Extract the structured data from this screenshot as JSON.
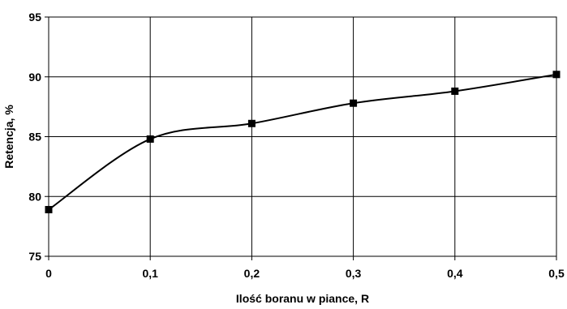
{
  "chart_data": {
    "type": "line",
    "title": "",
    "xlabel": "Ilość boranu w piance, R",
    "ylabel": "Retencja, %",
    "x": [
      0,
      0.1,
      0.2,
      0.3,
      0.4,
      0.5
    ],
    "x_tick_labels": [
      "0",
      "0,1",
      "0,2",
      "0,3",
      "0,4",
      "0,5"
    ],
    "xlim": [
      0,
      0.5
    ],
    "y_ticks": [
      75,
      80,
      85,
      90,
      95
    ],
    "y_tick_labels": [
      "75",
      "80",
      "85",
      "90",
      "95"
    ],
    "ylim": [
      75,
      95
    ],
    "grid": true,
    "smooth": true,
    "marker": "square",
    "series": [
      {
        "values": [
          78.9,
          84.8,
          86.1,
          87.8,
          88.8,
          90.2
        ],
        "color": "#000000"
      }
    ]
  }
}
